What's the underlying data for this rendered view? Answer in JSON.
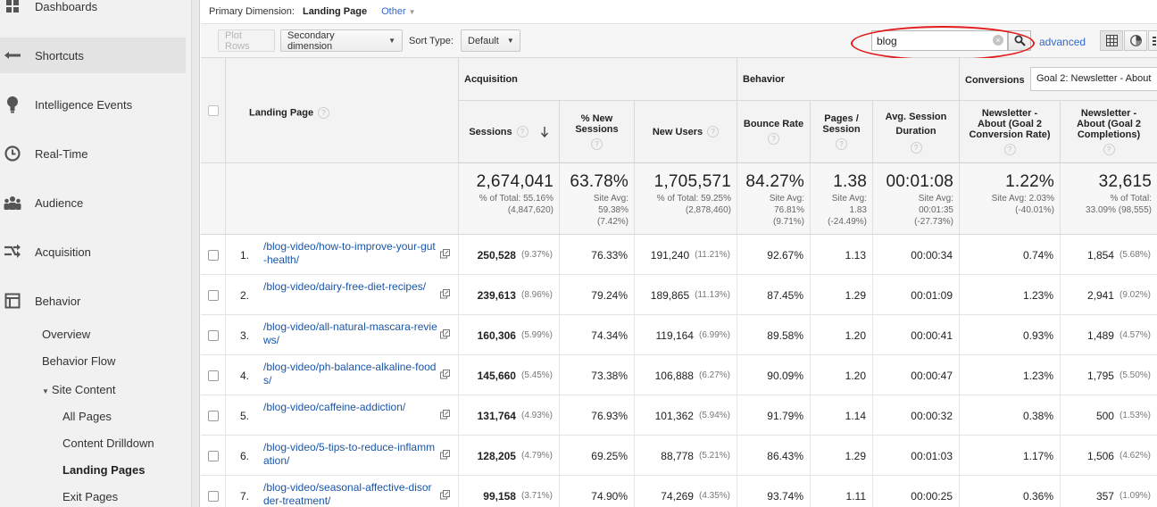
{
  "sidebar": {
    "items": [
      {
        "label": "Dashboards",
        "icon": "grid-icon"
      },
      {
        "label": "Shortcuts",
        "icon": "shortcut-arrow-icon"
      },
      {
        "label": "Intelligence Events",
        "icon": "lightbulb-icon"
      },
      {
        "label": "Real-Time",
        "icon": "clock-icon"
      },
      {
        "label": "Audience",
        "icon": "people-icon"
      },
      {
        "label": "Acquisition",
        "icon": "split-arrow-icon"
      },
      {
        "label": "Behavior",
        "icon": "window-icon"
      }
    ],
    "behavior_sub": {
      "overview": "Overview",
      "behavior_flow": "Behavior Flow",
      "site_content": "Site Content",
      "all_pages": "All Pages",
      "content_drilldown": "Content Drilldown",
      "landing_pages": "Landing Pages",
      "exit_pages": "Exit Pages"
    }
  },
  "dimension_bar": {
    "label": "Primary Dimension:",
    "value": "Landing Page",
    "other": "Other"
  },
  "toolbar": {
    "plot_rows": "Plot Rows",
    "secondary_dimension": "Secondary dimension",
    "sort_type_label": "Sort Type:",
    "sort_type_value": "Default",
    "search_value": "blog",
    "advanced": "advanced"
  },
  "table": {
    "groups": {
      "acquisition": "Acquisition",
      "behavior": "Behavior",
      "conversions": "Conversions",
      "goal_select": "Goal 2: Newsletter - About"
    },
    "headers": {
      "landing_page": "Landing Page",
      "sessions": "Sessions",
      "new_sessions": "% New Sessions",
      "new_users": "New Users",
      "bounce_rate": "Bounce Rate",
      "pages_session": "Pages / Session",
      "avg_duration": "Avg. Session Duration",
      "conv_rate": "Newsletter - About (Goal 2 Conversion Rate)",
      "completions": "Newsletter - About (Goal 2 Completions)"
    },
    "summary": {
      "sessions": {
        "big": "2,674,041",
        "l1": "% of Total: 55.16%",
        "l2": "(4,847,620)"
      },
      "new_sessions": {
        "big": "63.78%",
        "l1": "Site Avg:",
        "l2": "59.38%",
        "l3": "(7.42%)"
      },
      "new_users": {
        "big": "1,705,571",
        "l1": "% of Total: 59.25%",
        "l2": "(2,878,460)"
      },
      "bounce_rate": {
        "big": "84.27%",
        "l1": "Site Avg:",
        "l2": "76.81%",
        "l3": "(9.71%)"
      },
      "pages_session": {
        "big": "1.38",
        "l1": "Site Avg:",
        "l2": "1.83",
        "l3": "(-24.49%)"
      },
      "avg_duration": {
        "big": "00:01:08",
        "l1": "Site Avg:",
        "l2": "00:01:35",
        "l3": "(-27.73%)"
      },
      "conv_rate": {
        "big": "1.22%",
        "l1": "Site Avg: 2.03%",
        "l2": "(-40.01%)"
      },
      "completions": {
        "big": "32,615",
        "l1": "% of Total:",
        "l2": "33.09% (98,555)"
      }
    },
    "rows": [
      {
        "rank": "1.",
        "page": "/blog-video/how-to-improve-your-gut-health/",
        "sessions": "250,528",
        "sessions_pct": "(9.37%)",
        "new_sessions": "76.33%",
        "new_users": "191,240",
        "new_users_pct": "(11.21%)",
        "bounce": "92.67%",
        "pages": "1.13",
        "duration": "00:00:34",
        "conv": "0.74%",
        "comp": "1,854",
        "comp_pct": "(5.68%)"
      },
      {
        "rank": "2.",
        "page": "/blog-video/dairy-free-diet-recipes/",
        "sessions": "239,613",
        "sessions_pct": "(8.96%)",
        "new_sessions": "79.24%",
        "new_users": "189,865",
        "new_users_pct": "(11.13%)",
        "bounce": "87.45%",
        "pages": "1.29",
        "duration": "00:01:09",
        "conv": "1.23%",
        "comp": "2,941",
        "comp_pct": "(9.02%)"
      },
      {
        "rank": "3.",
        "page": "/blog-video/all-natural-mascara-reviews/",
        "sessions": "160,306",
        "sessions_pct": "(5.99%)",
        "new_sessions": "74.34%",
        "new_users": "119,164",
        "new_users_pct": "(6.99%)",
        "bounce": "89.58%",
        "pages": "1.20",
        "duration": "00:00:41",
        "conv": "0.93%",
        "comp": "1,489",
        "comp_pct": "(4.57%)"
      },
      {
        "rank": "4.",
        "page": "/blog-video/ph-balance-alkaline-foods/",
        "sessions": "145,660",
        "sessions_pct": "(5.45%)",
        "new_sessions": "73.38%",
        "new_users": "106,888",
        "new_users_pct": "(6.27%)",
        "bounce": "90.09%",
        "pages": "1.20",
        "duration": "00:00:47",
        "conv": "1.23%",
        "comp": "1,795",
        "comp_pct": "(5.50%)"
      },
      {
        "rank": "5.",
        "page": "/blog-video/caffeine-addiction/",
        "sessions": "131,764",
        "sessions_pct": "(4.93%)",
        "new_sessions": "76.93%",
        "new_users": "101,362",
        "new_users_pct": "(5.94%)",
        "bounce": "91.79%",
        "pages": "1.14",
        "duration": "00:00:32",
        "conv": "0.38%",
        "comp": "500",
        "comp_pct": "(1.53%)"
      },
      {
        "rank": "6.",
        "page": "/blog-video/5-tips-to-reduce-inflammation/",
        "sessions": "128,205",
        "sessions_pct": "(4.79%)",
        "new_sessions": "69.25%",
        "new_users": "88,778",
        "new_users_pct": "(5.21%)",
        "bounce": "86.43%",
        "pages": "1.29",
        "duration": "00:01:03",
        "conv": "1.17%",
        "comp": "1,506",
        "comp_pct": "(4.62%)"
      },
      {
        "rank": "7.",
        "page": "/blog-video/seasonal-affective-disorder-treatment/",
        "sessions": "99,158",
        "sessions_pct": "(3.71%)",
        "new_sessions": "74.90%",
        "new_users": "74,269",
        "new_users_pct": "(4.35%)",
        "bounce": "93.74%",
        "pages": "1.11",
        "duration": "00:00:25",
        "conv": "0.36%",
        "comp": "357",
        "comp_pct": "(1.09%)"
      }
    ]
  },
  "colors": {
    "link": "#1a55a8",
    "highlight_ellipse": "#e21c1c",
    "sidebar_bg": "#f1f1f1"
  }
}
